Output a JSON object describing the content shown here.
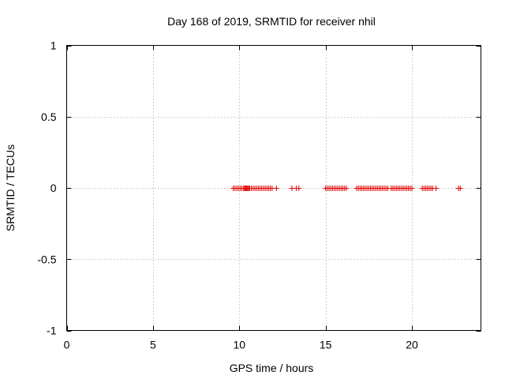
{
  "chart_data": {
    "type": "scatter",
    "title": "Day 168 of 2019, SRMTID for receiver nhil",
    "xlabel": "GPS time / hours",
    "ylabel": "SRMTID / TECUs",
    "xlim": [
      0,
      24
    ],
    "ylim": [
      -1,
      1
    ],
    "xticks": [
      0,
      5,
      10,
      15,
      20
    ],
    "yticks": [
      1,
      0.5,
      0,
      -0.5,
      -1
    ],
    "xtick_labels": [
      "0",
      "5",
      "10",
      "15",
      "20"
    ],
    "ytick_labels": [
      "1",
      "0.5",
      "0",
      "-0.5",
      "-1"
    ],
    "grid": true,
    "marker": "+",
    "color": "#e00000",
    "series": [
      {
        "name": "SRMTID",
        "x": [
          9.65,
          9.75,
          9.85,
          9.95,
          10.05,
          10.15,
          10.25,
          10.3,
          10.35,
          10.4,
          10.45,
          10.5,
          10.55,
          10.6,
          10.7,
          10.8,
          10.9,
          11.0,
          11.1,
          11.2,
          11.3,
          11.4,
          11.5,
          11.6,
          11.7,
          11.8,
          11.9,
          12.15,
          13.05,
          13.3,
          13.45,
          15.0,
          15.1,
          15.2,
          15.3,
          15.4,
          15.5,
          15.6,
          15.7,
          15.8,
          15.9,
          16.0,
          16.1,
          16.2,
          16.8,
          16.9,
          17.0,
          17.1,
          17.2,
          17.3,
          17.4,
          17.5,
          17.6,
          17.7,
          17.8,
          17.9,
          18.0,
          18.1,
          18.2,
          18.3,
          18.4,
          18.5,
          18.6,
          18.8,
          18.9,
          19.0,
          19.1,
          19.2,
          19.3,
          19.4,
          19.5,
          19.6,
          19.7,
          19.8,
          19.9,
          20.0,
          20.6,
          20.7,
          20.8,
          20.9,
          21.0,
          21.1,
          21.2,
          21.4,
          22.7,
          22.8
        ],
        "y": [
          0,
          0,
          0,
          0,
          0,
          0,
          0,
          0,
          0,
          0,
          0,
          0,
          0,
          0,
          0,
          0,
          0,
          0,
          0,
          0,
          0,
          0,
          0,
          0,
          0,
          0,
          0,
          0,
          0,
          0,
          0,
          0,
          0,
          0,
          0,
          0,
          0,
          0,
          0,
          0,
          0,
          0,
          0,
          0,
          0,
          0,
          0,
          0,
          0,
          0,
          0,
          0,
          0,
          0,
          0,
          0,
          0,
          0,
          0,
          0,
          0,
          0,
          0,
          0,
          0,
          0,
          0,
          0,
          0,
          0,
          0,
          0,
          0,
          0,
          0,
          0,
          0,
          0,
          0,
          0,
          0,
          0,
          0,
          0,
          0,
          0
        ]
      }
    ]
  }
}
